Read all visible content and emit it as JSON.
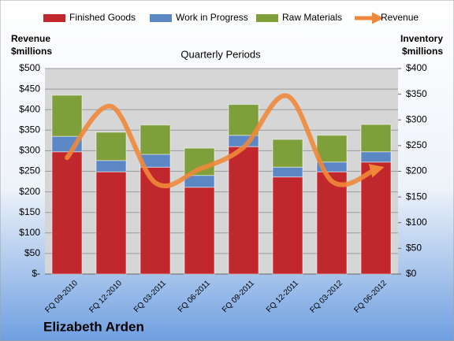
{
  "chart_data": {
    "type": "bar",
    "stacked": true,
    "title": "Quarterly Periods",
    "y_label": [
      "Revenue",
      "$millions"
    ],
    "y2_label": [
      "Inventory",
      "$millions"
    ],
    "footer": "Elizabeth Arden",
    "categories": [
      "FQ 09-2010",
      "FQ 12-2010",
      "FQ 03-2011",
      "FQ 06-2011",
      "FQ 09-2011",
      "FQ 12-2011",
      "FQ 03-2012",
      "FQ 06-2012"
    ],
    "series": [
      {
        "name": "Finished Goods",
        "color": "#c0282d",
        "axis": "y2",
        "values": [
          238,
          199,
          208,
          169,
          248,
          189,
          199,
          218
        ]
      },
      {
        "name": "Work in Progress",
        "color": "#5b87c5",
        "axis": "y2",
        "values": [
          30,
          22,
          25,
          23,
          22,
          19,
          19,
          20
        ]
      },
      {
        "name": "Raw Materials",
        "color": "#7f9f3a",
        "axis": "y2",
        "values": [
          80,
          55,
          57,
          53,
          60,
          54,
          52,
          53
        ]
      },
      {
        "name": "Revenue",
        "color": "#f0883a",
        "type": "line",
        "values": [
          283,
          408,
          222,
          255,
          308,
          433,
          226,
          255
        ]
      }
    ],
    "ylim": [
      0,
      500
    ],
    "yticks": [
      {
        "value": 0,
        "label": "$-"
      },
      {
        "value": 50,
        "label": "$50"
      },
      {
        "value": 100,
        "label": "$100"
      },
      {
        "value": 150,
        "label": "$150"
      },
      {
        "value": 200,
        "label": "$200"
      },
      {
        "value": 250,
        "label": "$250"
      },
      {
        "value": 300,
        "label": "$300"
      },
      {
        "value": 350,
        "label": "$350"
      },
      {
        "value": 400,
        "label": "$400"
      },
      {
        "value": 450,
        "label": "$450"
      },
      {
        "value": 500,
        "label": "$500"
      }
    ],
    "y2lim": [
      0,
      400
    ],
    "y2ticks": [
      {
        "value": 0,
        "label": "$0"
      },
      {
        "value": 50,
        "label": "$50"
      },
      {
        "value": 100,
        "label": "$100"
      },
      {
        "value": 150,
        "label": "$150"
      },
      {
        "value": 200,
        "label": "$200"
      },
      {
        "value": 250,
        "label": "$250"
      },
      {
        "value": 300,
        "label": "$300"
      },
      {
        "value": 350,
        "label": "$350"
      },
      {
        "value": 400,
        "label": "$400"
      }
    ],
    "grid": true
  }
}
